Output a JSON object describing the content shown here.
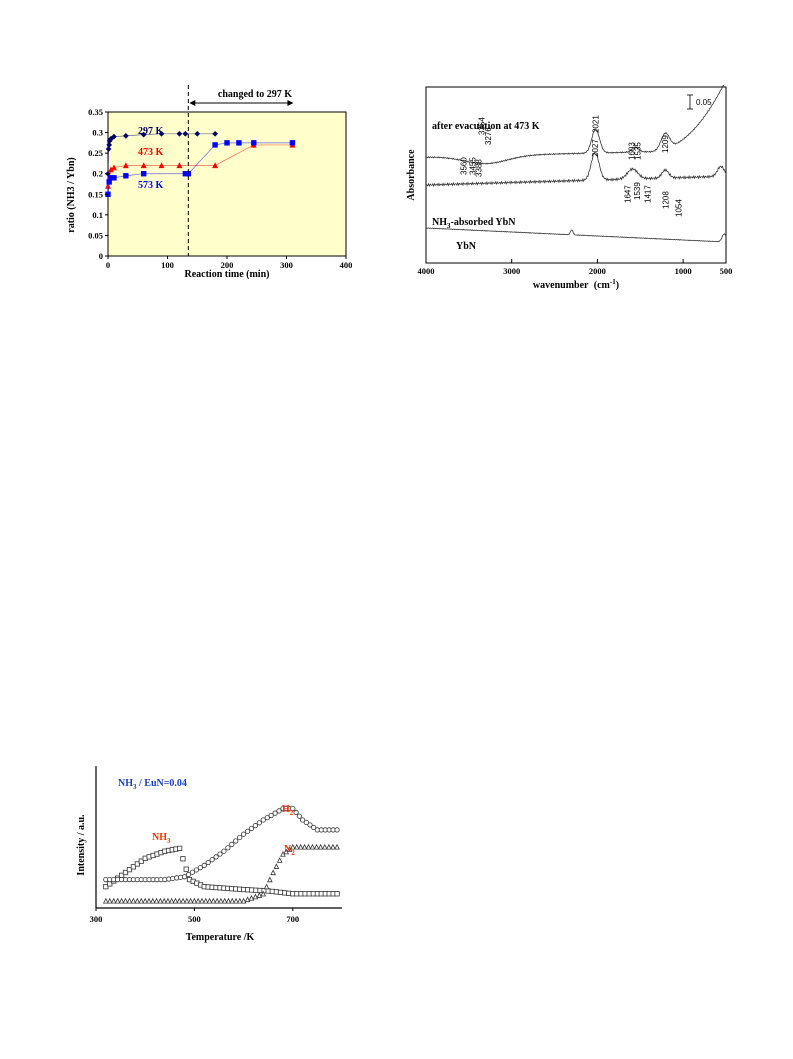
{
  "chart_data": [
    {
      "type": "scatter",
      "title": "",
      "xlabel": "Reaction time (min)",
      "ylabel": "ratio (NH3 / Ybn)",
      "xlim": [
        0,
        400
      ],
      "ylim": [
        0,
        0.35
      ],
      "x_ticks": [
        "0",
        "100",
        "200",
        "300",
        "400"
      ],
      "y_ticks": [
        "0",
        "0.05",
        "0.1",
        "0.15",
        "0.2",
        "0.25",
        "0.3",
        "0.35"
      ],
      "background_color": "#ffffcc",
      "annotation": "changed to 297 K",
      "change_time": 135,
      "series": [
        {
          "name": "297 K",
          "color": "#000066",
          "marker": "diamond",
          "x": [
            0,
            1,
            2,
            3,
            5,
            10,
            30,
            60,
            90,
            120,
            130,
            150,
            180
          ],
          "y": [
            0.2,
            0.26,
            0.27,
            0.28,
            0.285,
            0.29,
            0.292,
            0.295,
            0.297,
            0.297,
            0.297,
            0.297,
            0.297
          ]
        },
        {
          "name": "473 K",
          "color": "#ff0000",
          "marker": "triangle",
          "x": [
            0,
            2,
            5,
            10,
            30,
            60,
            90,
            120,
            180,
            245,
            310
          ],
          "y": [
            0.17,
            0.19,
            0.21,
            0.215,
            0.22,
            0.22,
            0.22,
            0.22,
            0.22,
            0.27,
            0.27
          ]
        },
        {
          "name": "573 K",
          "color": "#0000ff",
          "marker": "square",
          "x": [
            0,
            2,
            5,
            10,
            30,
            60,
            130,
            135,
            180,
            200,
            220,
            245,
            310
          ],
          "y": [
            0.15,
            0.18,
            0.19,
            0.19,
            0.195,
            0.2,
            0.2,
            0.2,
            0.27,
            0.275,
            0.275,
            0.275,
            0.275
          ]
        }
      ]
    },
    {
      "type": "line",
      "title": "",
      "xlabel": "wavenumber",
      "xlabel_unit": "(cm",
      "xlabel_sup": "-1",
      "xlabel_close": ")",
      "ylabel": "Absorbance",
      "xlim": [
        4000,
        500
      ],
      "x_ticks": [
        "4000",
        "3000",
        "2000",
        "1000",
        "500"
      ],
      "scale_bar": "0.05",
      "series": [
        {
          "name": "after evacuation at 473 K",
          "peaks": [
            "3354",
            "3276",
            "2021",
            "1603",
            "1535",
            "1209"
          ]
        },
        {
          "name_prefix": "NH",
          "name_sub": "3",
          "name_suffix": "-absorbed YbN",
          "peaks": [
            "3560",
            "3455",
            "3388",
            "2027",
            "1647",
            "1539",
            "1417",
            "1208",
            "1054"
          ]
        },
        {
          "name": "YbN",
          "peaks": []
        }
      ]
    },
    {
      "type": "scatter",
      "title": "",
      "xlabel": "Temperature /K",
      "ylabel": "Intensity / a.u.",
      "xlim": [
        300,
        800
      ],
      "x_ticks": [
        "300",
        "500",
        "700"
      ],
      "annotation_prefix": "NH",
      "annotation_sub": "3",
      "annotation_suffix": " / EuN=0.04",
      "series": [
        {
          "name_prefix": "NH",
          "name_sub": "3",
          "color": "#ff3300",
          "marker": "square",
          "x": [
            320,
            360,
            400,
            440,
            470,
            490,
            520,
            560,
            600,
            650,
            700,
            750,
            790
          ],
          "y": [
            0.15,
            0.25,
            0.35,
            0.4,
            0.42,
            0.2,
            0.15,
            0.14,
            0.13,
            0.12,
            0.1,
            0.1,
            0.1
          ]
        },
        {
          "name_prefix": "H",
          "name_sub": "2",
          "color": "#ff3300",
          "marker": "circle",
          "x": [
            320,
            360,
            400,
            440,
            480,
            520,
            560,
            600,
            640,
            680,
            700,
            720,
            750,
            790
          ],
          "y": [
            0.2,
            0.2,
            0.2,
            0.2,
            0.22,
            0.3,
            0.4,
            0.52,
            0.62,
            0.7,
            0.7,
            0.62,
            0.55,
            0.55
          ]
        },
        {
          "name_prefix": "N",
          "name_sub": "2",
          "color": "#ff3300",
          "marker": "triangle",
          "x": [
            320,
            400,
            500,
            600,
            640,
            660,
            680,
            700,
            740,
            790
          ],
          "y": [
            0.05,
            0.05,
            0.05,
            0.05,
            0.1,
            0.25,
            0.38,
            0.43,
            0.43,
            0.43
          ]
        }
      ]
    }
  ]
}
